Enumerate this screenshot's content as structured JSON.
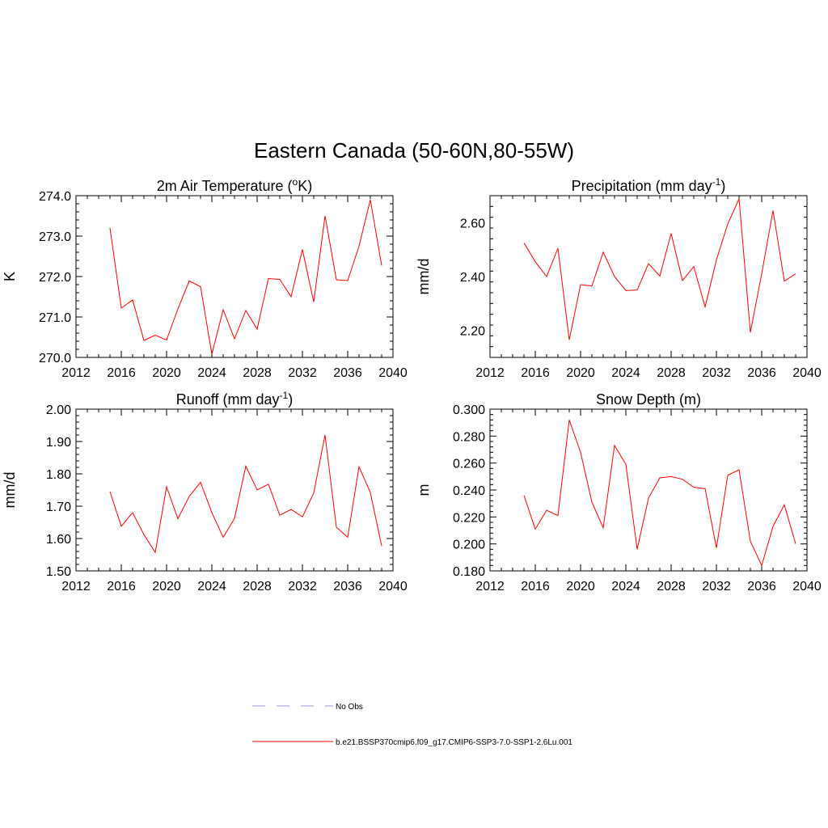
{
  "figure": {
    "title": "Eastern Canada (50-60N,80-55W)"
  },
  "legend": [
    {
      "label": "No Obs",
      "color": "#9999dd",
      "dash": "dashed"
    },
    {
      "label": "b.e21.BSSP370cmip6.f09_g17.CMIP6-SSP3-7.0-SSP1-2.6Lu.001",
      "color": "#ff0000",
      "dash": "solid"
    }
  ],
  "chart_data": [
    {
      "type": "line",
      "title": "2m Air Temperature (",
      "title_sup": "o",
      "title_suffix": "K)",
      "ylabel": "K",
      "xlim": [
        2012,
        2040
      ],
      "ylim": [
        270.0,
        274.0
      ],
      "xticks": [
        2012,
        2016,
        2020,
        2024,
        2028,
        2032,
        2036,
        2040
      ],
      "yticks": [
        270.0,
        271.0,
        272.0,
        273.0,
        274.0
      ],
      "ytick_decimals": 1,
      "x": [
        2015,
        2016,
        2017,
        2018,
        2019,
        2020,
        2021,
        2022,
        2023,
        2024,
        2025,
        2026,
        2027,
        2028,
        2029,
        2030,
        2031,
        2032,
        2033,
        2034,
        2035,
        2036,
        2037,
        2038,
        2039
      ],
      "series": [
        {
          "name": "b.e21.BSSP370cmip6.f09_g17.CMIP6-SSP3-7.0-SSP1-2.6Lu.001",
          "color": "#ff0000",
          "values": [
            273.2,
            271.22,
            271.42,
            270.42,
            270.55,
            270.43,
            271.2,
            271.89,
            271.75,
            270.08,
            271.18,
            270.46,
            271.16,
            270.7,
            271.95,
            271.93,
            271.5,
            272.67,
            271.37,
            273.5,
            271.92,
            271.9,
            272.75,
            273.9,
            272.27
          ]
        }
      ]
    },
    {
      "type": "line",
      "title": "Precipitation (mm day",
      "title_sup": "-1",
      "title_suffix": ")",
      "ylabel": "mm/d",
      "xlim": [
        2012,
        2040
      ],
      "ylim": [
        2.1,
        2.7
      ],
      "xticks": [
        2012,
        2016,
        2020,
        2024,
        2028,
        2032,
        2036,
        2040
      ],
      "yticks": [
        2.2,
        2.4,
        2.6
      ],
      "ytick_decimals": 2,
      "x": [
        2015,
        2016,
        2017,
        2018,
        2019,
        2020,
        2021,
        2022,
        2023,
        2024,
        2025,
        2026,
        2027,
        2028,
        2029,
        2030,
        2031,
        2032,
        2033,
        2034,
        2035,
        2036,
        2037,
        2038,
        2039
      ],
      "series": [
        {
          "name": "b.e21.BSSP370cmip6.f09_g17.CMIP6-SSP3-7.0-SSP1-2.6Lu.001",
          "color": "#ff0000",
          "values": [
            2.525,
            2.455,
            2.4,
            2.505,
            2.165,
            2.37,
            2.365,
            2.49,
            2.4,
            2.348,
            2.35,
            2.448,
            2.402,
            2.56,
            2.385,
            2.437,
            2.287,
            2.462,
            2.595,
            2.688,
            2.193,
            2.41,
            2.645,
            2.383,
            2.41
          ]
        }
      ]
    },
    {
      "type": "line",
      "title": "Runoff (mm day",
      "title_sup": "-1",
      "title_suffix": ")",
      "ylabel": "mm/d",
      "xlim": [
        2012,
        2040
      ],
      "ylim": [
        1.5,
        2.0
      ],
      "xticks": [
        2012,
        2016,
        2020,
        2024,
        2028,
        2032,
        2036,
        2040
      ],
      "yticks": [
        1.5,
        1.6,
        1.7,
        1.8,
        1.9,
        2.0
      ],
      "ytick_decimals": 2,
      "x": [
        2015,
        2016,
        2017,
        2018,
        2019,
        2020,
        2021,
        2022,
        2023,
        2024,
        2025,
        2026,
        2027,
        2028,
        2029,
        2030,
        2031,
        2032,
        2033,
        2034,
        2035,
        2036,
        2037,
        2038,
        2039
      ],
      "series": [
        {
          "name": "b.e21.BSSP370cmip6.f09_g17.CMIP6-SSP3-7.0-SSP1-2.6Lu.001",
          "color": "#ff0000",
          "values": [
            1.745,
            1.638,
            1.68,
            1.612,
            1.557,
            1.76,
            1.661,
            1.73,
            1.774,
            1.68,
            1.604,
            1.662,
            1.824,
            1.75,
            1.768,
            1.672,
            1.69,
            1.667,
            1.741,
            1.92,
            1.635,
            1.604,
            1.822,
            1.742,
            1.577
          ]
        }
      ]
    },
    {
      "type": "line",
      "title": "Snow Depth (m)",
      "title_sup": "",
      "title_suffix": "",
      "ylabel": "m",
      "xlim": [
        2012,
        2040
      ],
      "ylim": [
        0.18,
        0.3
      ],
      "xticks": [
        2012,
        2016,
        2020,
        2024,
        2028,
        2032,
        2036,
        2040
      ],
      "yticks": [
        0.18,
        0.2,
        0.22,
        0.24,
        0.26,
        0.28,
        0.3
      ],
      "ytick_decimals": 3,
      "x": [
        2015,
        2016,
        2017,
        2018,
        2019,
        2020,
        2021,
        2022,
        2023,
        2024,
        2025,
        2026,
        2027,
        2028,
        2029,
        2030,
        2031,
        2032,
        2033,
        2034,
        2035,
        2036,
        2037,
        2038,
        2039
      ],
      "series": [
        {
          "name": "b.e21.BSSP370cmip6.f09_g17.CMIP6-SSP3-7.0-SSP1-2.6Lu.001",
          "color": "#ff0000",
          "values": [
            0.236,
            0.211,
            0.225,
            0.221,
            0.292,
            0.268,
            0.231,
            0.212,
            0.273,
            0.259,
            0.196,
            0.234,
            0.249,
            0.25,
            0.248,
            0.242,
            0.241,
            0.197,
            0.251,
            0.255,
            0.202,
            0.184,
            0.213,
            0.229,
            0.2
          ]
        }
      ]
    }
  ]
}
